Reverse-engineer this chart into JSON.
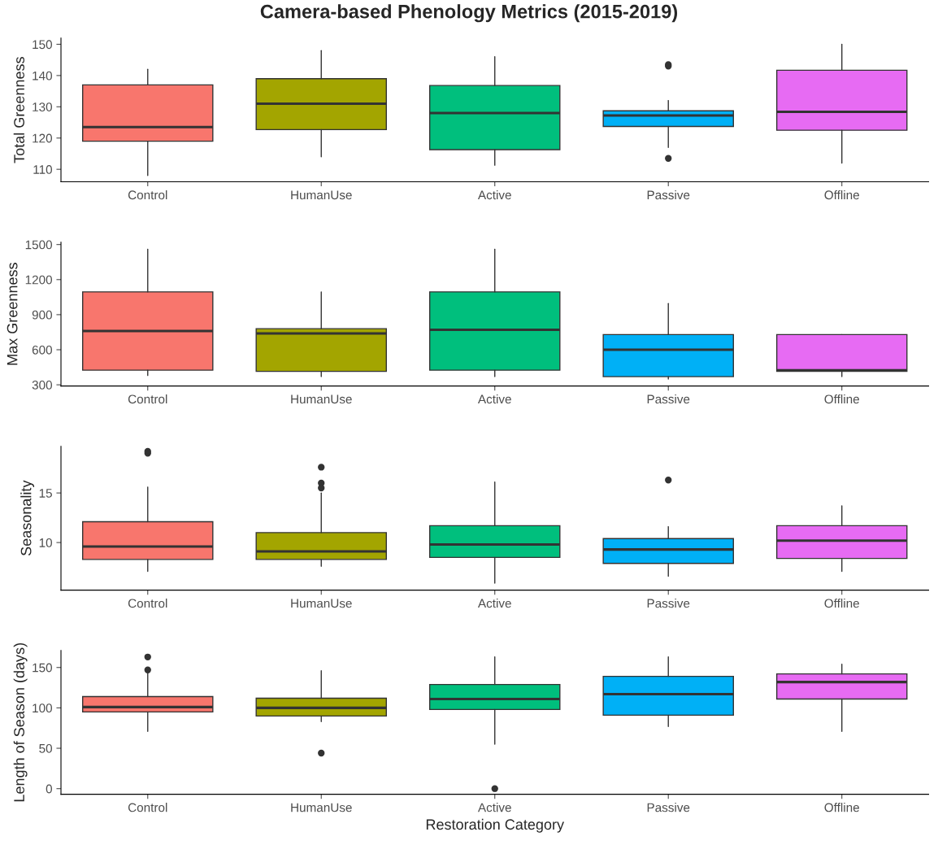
{
  "chart_data": [
    {
      "type": "box",
      "title": "Camera-based Phenology Metrics (2015-2019)",
      "ylabel": "Total Greenness",
      "categories": [
        "Control",
        "HumanUse",
        "Active",
        "Passive",
        "Offline"
      ],
      "colors": [
        "#f8766d",
        "#a3a500",
        "#00bf7d",
        "#00b0f6",
        "#e76bf3"
      ],
      "ylim": [
        106,
        152
      ],
      "yticks": [
        110,
        120,
        130,
        140,
        150
      ],
      "grid": false,
      "boxes": [
        {
          "low": 108,
          "q1": 119,
          "median": 123.5,
          "q3": 137,
          "high": 142
        },
        {
          "low": 114,
          "q1": 122.7,
          "median": 131,
          "q3": 139,
          "high": 148
        },
        {
          "low": 111.3,
          "q1": 116.3,
          "median": 128,
          "q3": 136.8,
          "high": 146
        },
        {
          "low": 117,
          "q1": 123.7,
          "median": 127.2,
          "q3": 128.7,
          "high": 132,
          "outliers": [
            143,
            143.5,
            113.5
          ]
        },
        {
          "low": 112,
          "q1": 122.5,
          "median": 128.4,
          "q3": 141.7,
          "high": 150
        }
      ]
    },
    {
      "type": "box",
      "ylabel": "Max Greenness",
      "categories": [
        "Control",
        "HumanUse",
        "Active",
        "Passive",
        "Offline"
      ],
      "colors": [
        "#f8766d",
        "#a3a500",
        "#00bf7d",
        "#00b0f6",
        "#e76bf3"
      ],
      "ylim": [
        290,
        1520
      ],
      "yticks": [
        300,
        600,
        900,
        1200,
        1500
      ],
      "grid": false,
      "boxes": [
        {
          "low": 380,
          "q1": 425,
          "median": 760,
          "q3": 1095,
          "high": 1460
        },
        {
          "low": 370,
          "q1": 415,
          "median": 740,
          "q3": 780,
          "high": 1095
        },
        {
          "low": 370,
          "q1": 425,
          "median": 770,
          "q3": 1095,
          "high": 1460
        },
        {
          "low": 350,
          "q1": 370,
          "median": 600,
          "q3": 730,
          "high": 995
        },
        {
          "low": 370,
          "q1": 415,
          "median": 425,
          "q3": 730,
          "high": 730
        }
      ]
    },
    {
      "type": "box",
      "ylabel": "Seasonality",
      "categories": [
        "Control",
        "HumanUse",
        "Active",
        "Passive",
        "Offline"
      ],
      "colors": [
        "#f8766d",
        "#a3a500",
        "#00bf7d",
        "#00b0f6",
        "#e76bf3"
      ],
      "ylim": [
        5.2,
        19.7
      ],
      "yticks": [
        10,
        15
      ],
      "grid": false,
      "boxes": [
        {
          "low": 7.1,
          "q1": 8.3,
          "median": 9.6,
          "q3": 12.1,
          "high": 15.6,
          "outliers": [
            19.0,
            19.2
          ]
        },
        {
          "low": 7.6,
          "q1": 8.3,
          "median": 9.1,
          "q3": 11.0,
          "high": 15.0,
          "outliers": [
            17.6,
            16.0,
            15.5
          ]
        },
        {
          "low": 5.9,
          "q1": 8.5,
          "median": 9.8,
          "q3": 11.7,
          "high": 16.1
        },
        {
          "low": 6.6,
          "q1": 7.9,
          "median": 9.3,
          "q3": 10.4,
          "high": 11.6,
          "outliers": [
            16.3
          ]
        },
        {
          "low": 7.1,
          "q1": 8.4,
          "median": 10.2,
          "q3": 11.7,
          "high": 13.7
        }
      ]
    },
    {
      "type": "box",
      "ylabel": "Length of Season (days)",
      "xlabel": "Restoration Category",
      "categories": [
        "Control",
        "HumanUse",
        "Active",
        "Passive",
        "Offline"
      ],
      "colors": [
        "#f8766d",
        "#a3a500",
        "#00bf7d",
        "#00b0f6",
        "#e76bf3"
      ],
      "ylim": [
        -7,
        171
      ],
      "yticks": [
        0,
        50,
        100,
        150
      ],
      "grid": false,
      "boxes": [
        {
          "low": 71,
          "q1": 95,
          "median": 101,
          "q3": 114,
          "high": 144,
          "outliers": [
            163,
            147
          ]
        },
        {
          "low": 83,
          "q1": 90,
          "median": 100,
          "q3": 112,
          "high": 146,
          "outliers": [
            44
          ]
        },
        {
          "low": 55,
          "q1": 98,
          "median": 111,
          "q3": 129,
          "high": 163,
          "outliers": [
            0
          ]
        },
        {
          "low": 77,
          "q1": 91,
          "median": 117,
          "q3": 139,
          "high": 163
        },
        {
          "low": 71,
          "q1": 111,
          "median": 132,
          "q3": 142,
          "high": 154
        }
      ]
    }
  ]
}
